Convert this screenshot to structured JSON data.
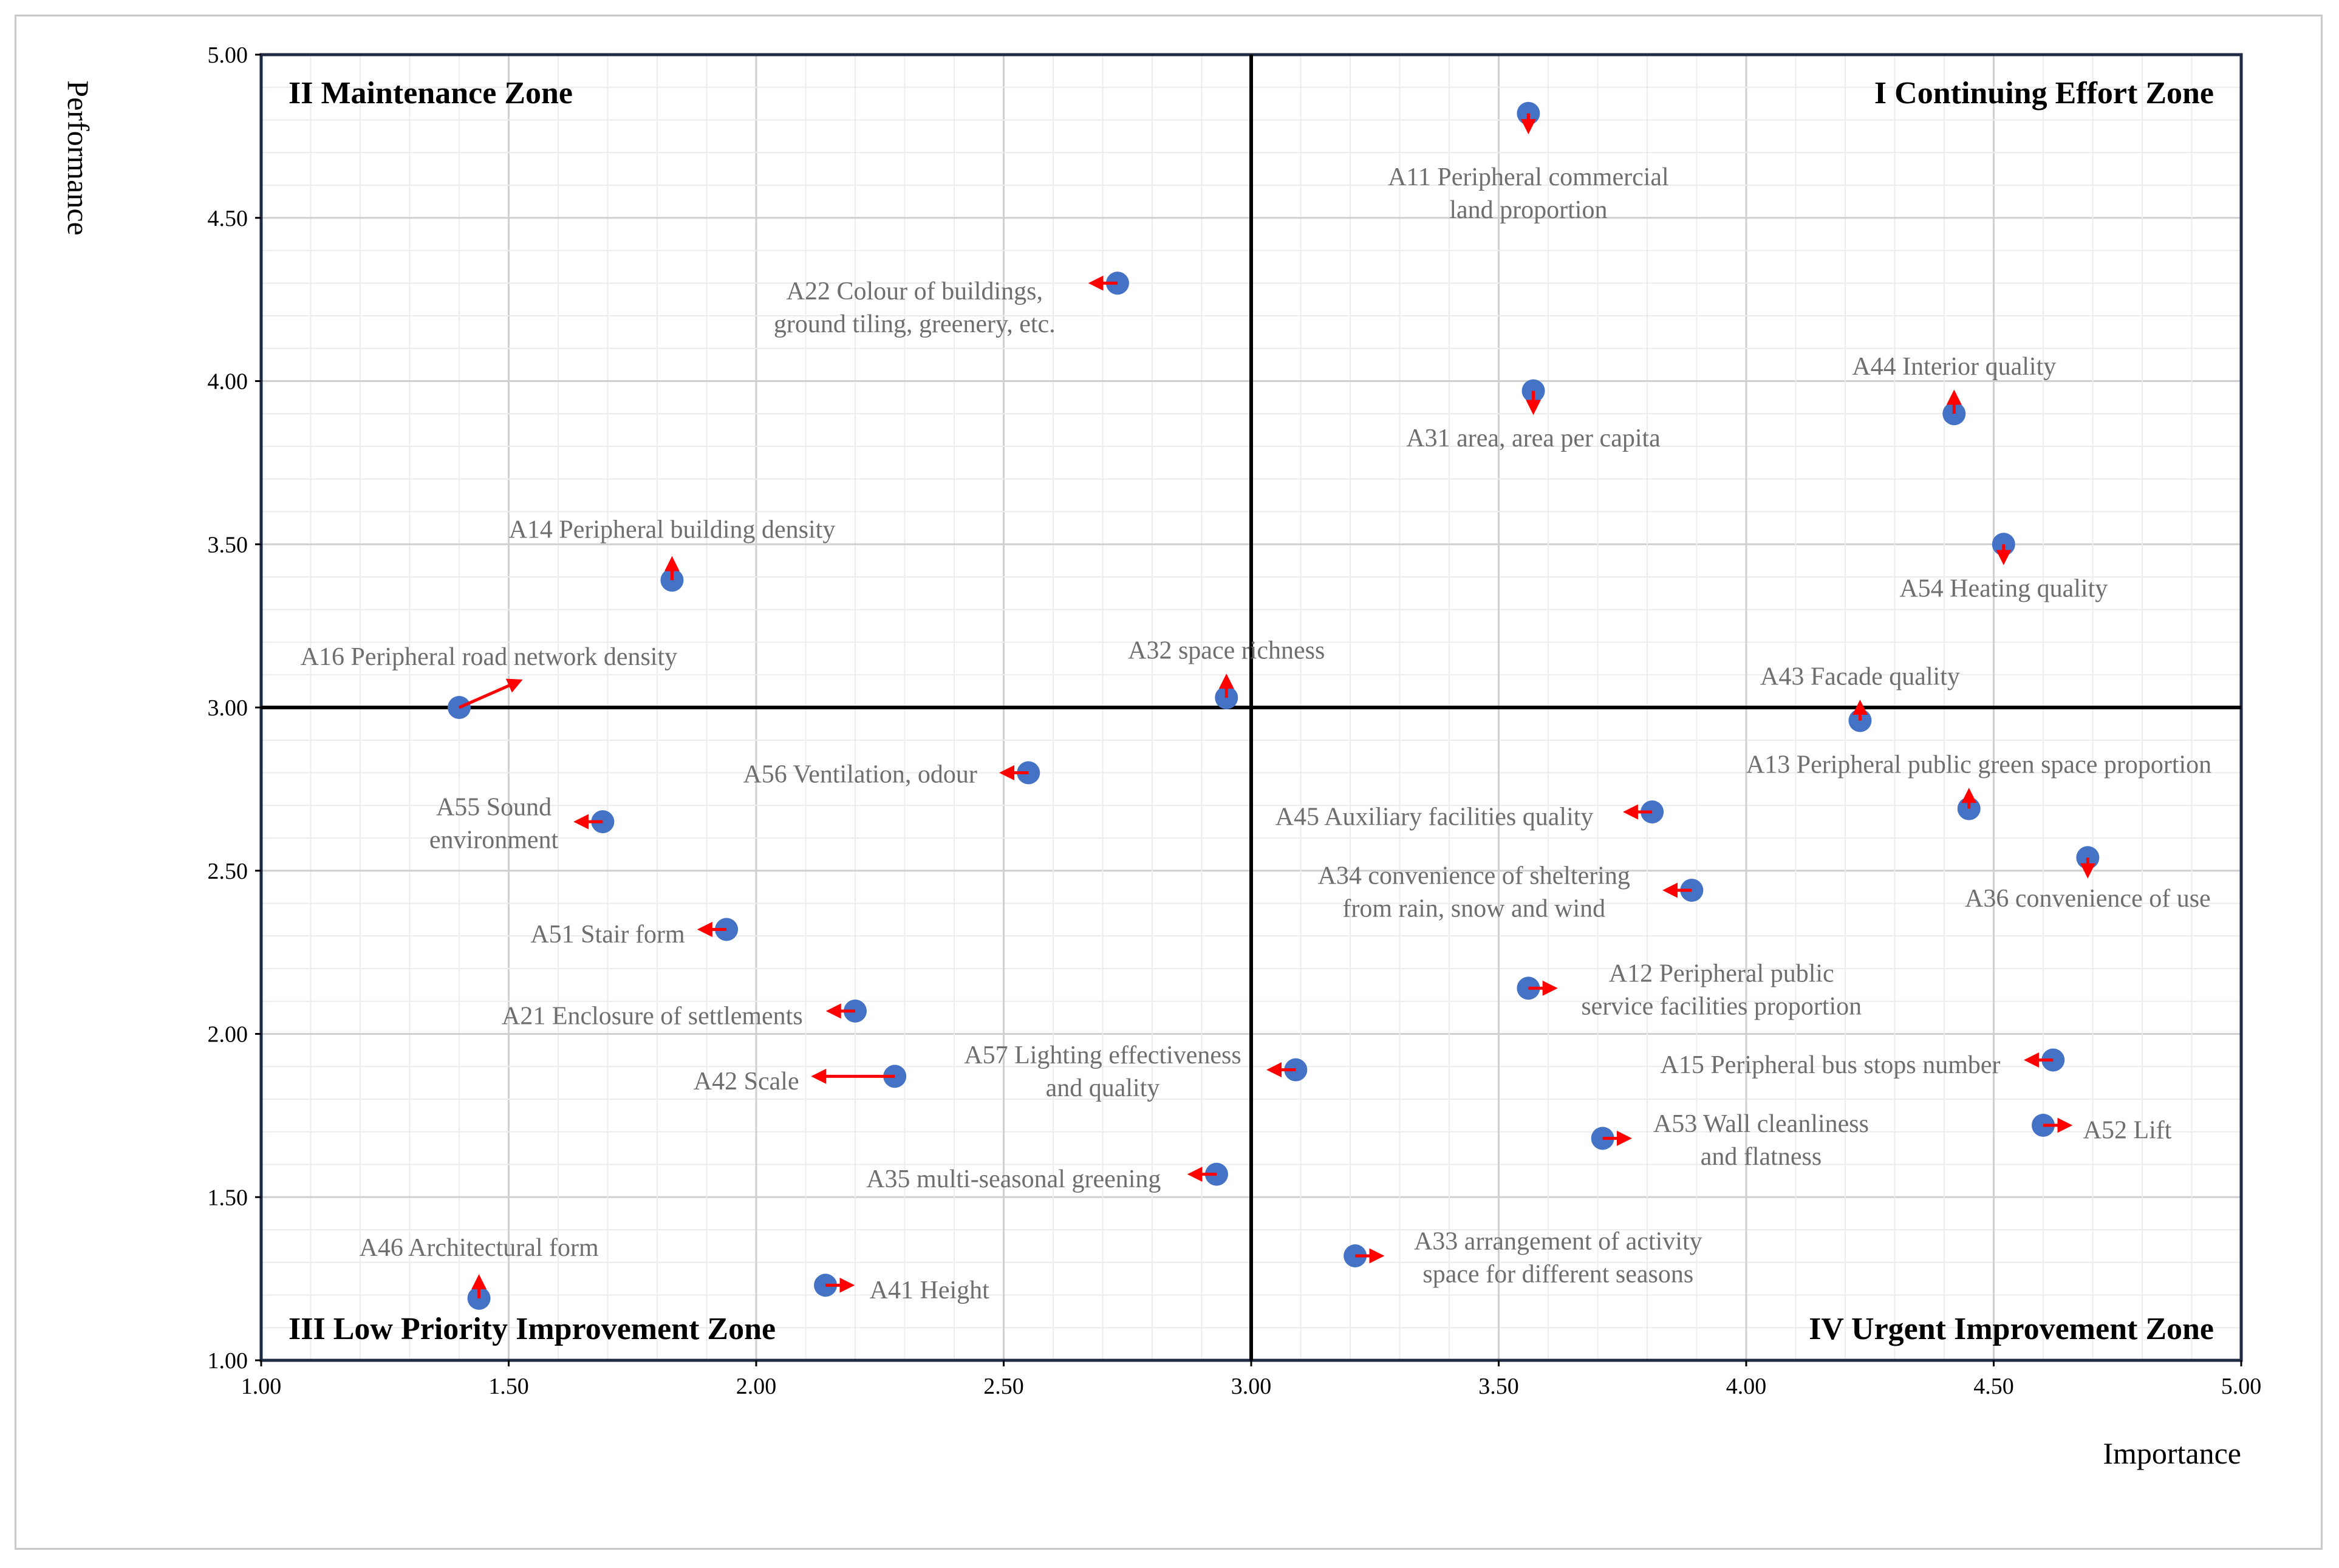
{
  "chart_data": {
    "type": "scatter",
    "title": "",
    "xlabel": "Importance",
    "ylabel": "Performance",
    "xlim": [
      1.0,
      5.0
    ],
    "ylim": [
      1.0,
      5.0
    ],
    "x_ticks": [
      "1.00",
      "1.50",
      "2.00",
      "2.50",
      "3.00",
      "3.50",
      "4.00",
      "4.50",
      "5.00"
    ],
    "y_ticks": [
      "1.00",
      "1.50",
      "2.00",
      "2.50",
      "3.00",
      "3.50",
      "4.00",
      "4.50",
      "5.00"
    ],
    "x_tick_values": [
      1.0,
      1.5,
      2.0,
      2.5,
      3.0,
      3.5,
      4.0,
      4.5,
      5.0
    ],
    "y_tick_values": [
      1.0,
      1.5,
      2.0,
      2.5,
      3.0,
      3.5,
      4.0,
      4.5,
      5.0
    ],
    "grid": true,
    "quadrant_lines": {
      "x": 3.0,
      "y": 3.0
    },
    "zones": [
      {
        "id": "II",
        "label": "II Maintenance Zone",
        "position": "top-left"
      },
      {
        "id": "I",
        "label": "I Continuing  Effort Zone",
        "position": "top-right"
      },
      {
        "id": "III",
        "label": "III Low Priority  Improvement  Zone",
        "position": "bottom-left"
      },
      {
        "id": "IV",
        "label": "IV Urgent Improvement Zone",
        "position": "bottom-right"
      }
    ],
    "marker_color": "#4472c4",
    "arrow_color": "#ff0000",
    "label_color": "#6e6e6e",
    "points": [
      {
        "id": "A11",
        "label": [
          "A11 Peripheral commercial",
          "land proportion"
        ],
        "x": 3.56,
        "y": 4.82,
        "arrow_to": [
          3.56,
          4.77
        ],
        "label_at": [
          3.56,
          4.6
        ]
      },
      {
        "id": "A22",
        "label": [
          "A22 Colour of buildings,",
          "ground tiling, greenery, etc."
        ],
        "x": 2.73,
        "y": 4.3,
        "arrow_to": [
          2.68,
          4.3
        ],
        "label_at": [
          2.32,
          4.25
        ]
      },
      {
        "id": "A44",
        "label": [
          "A44 Interior quality"
        ],
        "x": 4.42,
        "y": 3.9,
        "arrow_to": [
          4.42,
          3.96
        ],
        "label_at": [
          4.42,
          4.02
        ]
      },
      {
        "id": "A31",
        "label": [
          "A31 area, area per capita"
        ],
        "x": 3.57,
        "y": 3.97,
        "arrow_to": [
          3.57,
          3.91
        ],
        "label_at": [
          3.57,
          3.8
        ]
      },
      {
        "id": "A54",
        "label": [
          "A54 Heating quality"
        ],
        "x": 4.52,
        "y": 3.5,
        "arrow_to": [
          4.52,
          3.45
        ],
        "label_at": [
          4.52,
          3.34
        ]
      },
      {
        "id": "A14",
        "label": [
          "A14 Peripheral building density"
        ],
        "x": 1.83,
        "y": 3.39,
        "arrow_to": [
          1.83,
          3.45
        ],
        "label_at": [
          1.83,
          3.52
        ]
      },
      {
        "id": "A16",
        "label": [
          "A16 Peripheral road network density"
        ],
        "x": 1.4,
        "y": 3.0,
        "arrow_to": [
          1.52,
          3.08
        ],
        "label_at": [
          1.46,
          3.13
        ]
      },
      {
        "id": "A32",
        "label": [
          "A32 space richness"
        ],
        "x": 2.95,
        "y": 3.03,
        "arrow_to": [
          2.95,
          3.09
        ],
        "label_at": [
          2.95,
          3.15
        ]
      },
      {
        "id": "A43",
        "label": [
          "A43 Facade quality"
        ],
        "x": 4.23,
        "y": 2.96,
        "arrow_to": [
          4.23,
          3.01
        ],
        "label_at": [
          4.23,
          3.07
        ]
      },
      {
        "id": "A56",
        "label": [
          "A56 Ventilation, odour"
        ],
        "x": 2.55,
        "y": 2.8,
        "arrow_to": [
          2.5,
          2.8
        ],
        "label_at": [
          2.21,
          2.77
        ]
      },
      {
        "id": "A13",
        "label": [
          "A13 Peripheral public green space proportion"
        ],
        "x": 4.45,
        "y": 2.69,
        "arrow_to": [
          4.45,
          2.74
        ],
        "label_at": [
          4.47,
          2.8
        ]
      },
      {
        "id": "A45",
        "label": [
          "A45 Auxiliary facilities quality"
        ],
        "x": 3.81,
        "y": 2.68,
        "arrow_to": [
          3.76,
          2.68
        ],
        "label_at": [
          3.37,
          2.64
        ]
      },
      {
        "id": "A55",
        "label": [
          "A55 Sound",
          "environment"
        ],
        "x": 1.69,
        "y": 2.65,
        "arrow_to": [
          1.64,
          2.65
        ],
        "label_at": [
          1.47,
          2.67
        ]
      },
      {
        "id": "A36",
        "label": [
          "A36 convenience of use"
        ],
        "x": 4.69,
        "y": 2.54,
        "arrow_to": [
          4.69,
          2.49
        ],
        "label_at": [
          4.69,
          2.39
        ]
      },
      {
        "id": "A34",
        "label": [
          "A34 convenience of sheltering",
          "from rain, snow and wind"
        ],
        "x": 3.89,
        "y": 2.44,
        "arrow_to": [
          3.84,
          2.44
        ],
        "label_at": [
          3.45,
          2.46
        ]
      },
      {
        "id": "A51",
        "label": [
          "A51 Stair form"
        ],
        "x": 1.94,
        "y": 2.32,
        "arrow_to": [
          1.89,
          2.32
        ],
        "label_at": [
          1.7,
          2.28
        ]
      },
      {
        "id": "A12",
        "label": [
          "A12 Peripheral public",
          "service facilities proportion"
        ],
        "x": 3.56,
        "y": 2.14,
        "arrow_to": [
          3.61,
          2.14
        ],
        "label_at": [
          3.95,
          2.16
        ]
      },
      {
        "id": "A21",
        "label": [
          "A21 Enclosure of settlements"
        ],
        "x": 2.2,
        "y": 2.07,
        "arrow_to": [
          2.15,
          2.07
        ],
        "label_at": [
          1.79,
          2.03
        ]
      },
      {
        "id": "A42",
        "label": [
          "A42 Scale"
        ],
        "x": 2.28,
        "y": 1.87,
        "arrow_to": [
          2.12,
          1.87
        ],
        "label_at": [
          1.98,
          1.83
        ]
      },
      {
        "id": "A57",
        "label": [
          "A57 Lighting effectiveness",
          "and quality"
        ],
        "x": 3.09,
        "y": 1.89,
        "arrow_to": [
          3.04,
          1.89
        ],
        "label_at": [
          2.7,
          1.91
        ]
      },
      {
        "id": "A15",
        "label": [
          "A15 Peripheral bus stops number"
        ],
        "x": 4.62,
        "y": 1.92,
        "arrow_to": [
          4.57,
          1.92
        ],
        "label_at": [
          4.17,
          1.88
        ]
      },
      {
        "id": "A53",
        "label": [
          "A53 Wall cleanliness",
          "and flatness"
        ],
        "x": 3.71,
        "y": 1.68,
        "arrow_to": [
          3.76,
          1.68
        ],
        "label_at": [
          4.03,
          1.7
        ]
      },
      {
        "id": "A52",
        "label": [
          "A52 Lift"
        ],
        "x": 4.6,
        "y": 1.72,
        "arrow_to": [
          4.65,
          1.72
        ],
        "label_at": [
          4.77,
          1.68
        ]
      },
      {
        "id": "A35",
        "label": [
          "A35 multi-seasonal greening"
        ],
        "x": 2.93,
        "y": 1.57,
        "arrow_to": [
          2.88,
          1.57
        ],
        "label_at": [
          2.52,
          1.53
        ]
      },
      {
        "id": "A46",
        "label": [
          "A46 Architectural form"
        ],
        "x": 1.44,
        "y": 1.19,
        "arrow_to": [
          1.44,
          1.25
        ],
        "label_at": [
          1.44,
          1.32
        ]
      },
      {
        "id": "A41",
        "label": [
          "A41 Height"
        ],
        "x": 2.14,
        "y": 1.23,
        "arrow_to": [
          2.19,
          1.23
        ],
        "label_at": [
          2.35,
          1.19
        ]
      },
      {
        "id": "A33",
        "label": [
          "A33 arrangement of activity",
          "space for different seasons"
        ],
        "x": 3.21,
        "y": 1.32,
        "arrow_to": [
          3.26,
          1.32
        ],
        "label_at": [
          3.62,
          1.34
        ]
      }
    ]
  }
}
